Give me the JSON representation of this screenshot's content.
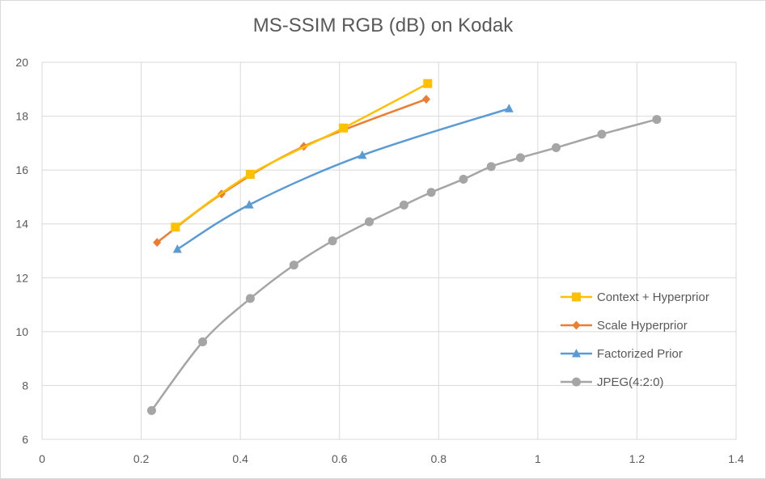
{
  "chart_data": {
    "type": "line",
    "title": "MS-SSIM RGB (dB) on Kodak",
    "xlabel": "",
    "ylabel": "",
    "xlim": [
      0,
      1.4
    ],
    "ylim": [
      6,
      20
    ],
    "x_ticks": [
      "0",
      "0.2",
      "0.4",
      "0.6",
      "0.8",
      "1",
      "1.2",
      "1.4"
    ],
    "y_ticks": [
      "6",
      "8",
      "10",
      "12",
      "14",
      "16",
      "18",
      "20"
    ],
    "grid": true,
    "legend_position": "bottom-right",
    "series": [
      {
        "name": "Context + Hyperprior",
        "color": "#ffc000",
        "marker": "square",
        "x": [
          0.269,
          0.42,
          0.608,
          0.778
        ],
        "y": [
          13.88,
          15.84,
          17.56,
          19.21
        ]
      },
      {
        "name": "Scale Hyperprior",
        "color": "#ed7d31",
        "marker": "diamond",
        "x": [
          0.232,
          0.362,
          0.528,
          0.775
        ],
        "y": [
          13.31,
          15.11,
          16.88,
          18.63
        ]
      },
      {
        "name": "Factorized Prior",
        "color": "#5b9bd5",
        "marker": "triangle",
        "x": [
          0.273,
          0.418,
          0.646,
          0.942
        ],
        "y": [
          13.06,
          14.71,
          16.55,
          18.28
        ]
      },
      {
        "name": "JPEG(4:2:0)",
        "color": "#a5a5a5",
        "marker": "circle",
        "x": [
          0.221,
          0.324,
          0.42,
          0.508,
          0.586,
          0.66,
          0.73,
          0.785,
          0.85,
          0.906,
          0.965,
          1.037,
          1.129,
          1.24
        ],
        "y": [
          7.07,
          9.62,
          11.23,
          12.47,
          13.37,
          14.08,
          14.7,
          15.17,
          15.66,
          16.13,
          16.46,
          16.83,
          17.33,
          17.88
        ]
      }
    ]
  }
}
